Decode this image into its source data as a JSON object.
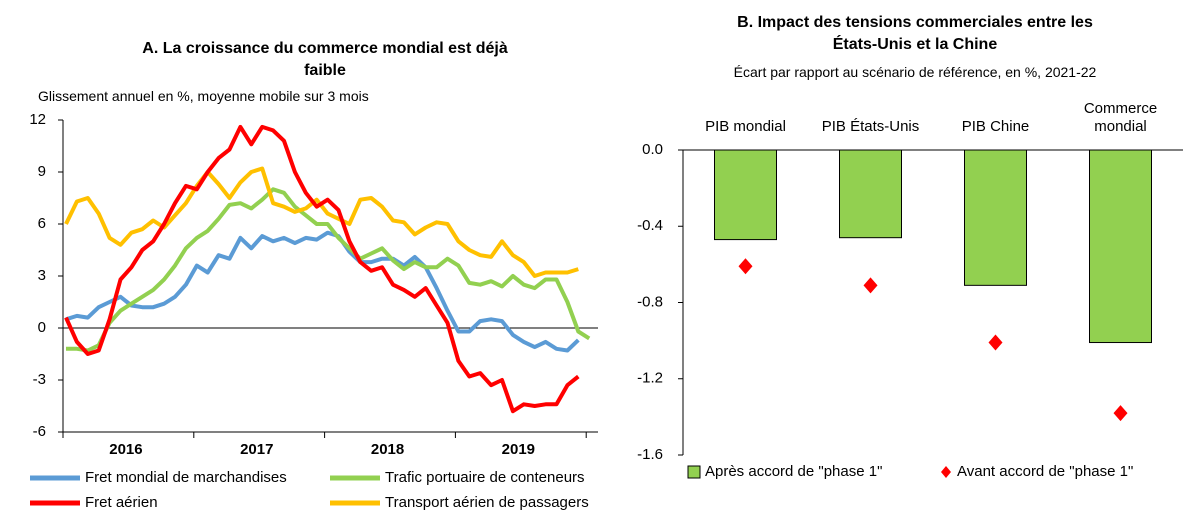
{
  "chart_data": [
    {
      "type": "line",
      "title": "A. La croissance du commerce mondial est déjà faible",
      "subtitle": "Glissement annuel en %, moyenne mobile sur 3 mois",
      "categories": [
        null,
        null,
        null,
        null,
        null,
        null,
        "2016",
        null,
        null,
        null,
        null,
        null,
        null,
        null,
        null,
        null,
        null,
        null,
        "2017",
        null,
        null,
        null,
        null,
        null,
        null,
        null,
        null,
        null,
        null,
        null,
        "2018",
        null,
        null,
        null,
        null,
        null,
        null,
        null,
        null,
        null,
        null,
        null,
        "2019",
        null,
        null,
        null,
        null,
        null,
        null
      ],
      "ylim": [
        -6,
        12
      ],
      "yticks": [
        -6,
        -3,
        0,
        3,
        6,
        9,
        12
      ],
      "series": [
        {
          "name": "Fret mondial de marchandises",
          "color": "#5b9bd5",
          "values": [
            0.5,
            0.7,
            0.6,
            1.2,
            1.5,
            1.8,
            1.3,
            1.2,
            1.2,
            1.4,
            1.8,
            2.5,
            3.6,
            3.2,
            4.2,
            4.0,
            5.2,
            4.6,
            5.3,
            5.0,
            5.2,
            4.9,
            5.2,
            5.1,
            5.5,
            5.3,
            4.4,
            3.8,
            3.8,
            4.0,
            4.0,
            3.6,
            4.1,
            3.5,
            2.3,
            1.0,
            -0.2,
            -0.2,
            0.4,
            0.5,
            0.4,
            -0.4,
            -0.8,
            -1.1,
            -0.8,
            -1.2,
            -1.3,
            -0.7,
            null
          ]
        },
        {
          "name": "Trafic portuaire de conteneurs",
          "color": "#92d050",
          "values": [
            -1.2,
            -1.2,
            -1.3,
            -1.0,
            0.3,
            1.0,
            1.4,
            1.8,
            2.2,
            2.8,
            3.6,
            4.6,
            5.2,
            5.6,
            6.3,
            7.1,
            7.2,
            6.9,
            7.4,
            8.0,
            7.8,
            7.0,
            6.5,
            6.0,
            6.0,
            5.2,
            4.6,
            4.0,
            4.3,
            4.6,
            3.9,
            3.4,
            3.8,
            3.5,
            3.5,
            4.0,
            3.6,
            2.6,
            2.5,
            2.7,
            2.4,
            3.0,
            2.5,
            2.3,
            2.8,
            2.8,
            1.5,
            -0.2,
            -0.6
          ]
        },
        {
          "name": "Fret aérien",
          "color": "#ff0000",
          "values": [
            0.6,
            -0.8,
            -1.5,
            -1.3,
            0.5,
            2.8,
            3.5,
            4.5,
            5.0,
            6.0,
            7.2,
            8.2,
            8.0,
            9.0,
            9.8,
            10.3,
            11.6,
            10.6,
            11.6,
            11.4,
            10.8,
            9.0,
            7.8,
            7.0,
            7.4,
            6.8,
            5.0,
            3.8,
            3.3,
            3.5,
            2.5,
            2.2,
            1.8,
            2.3,
            1.3,
            0.3,
            -1.9,
            -2.8,
            -2.6,
            -3.3,
            -3.0,
            -4.8,
            -4.4,
            -4.5,
            -4.4,
            -4.4,
            -3.3,
            -2.8,
            null
          ]
        },
        {
          "name": "Transport aérien de passagers",
          "color": "#ffc000",
          "values": [
            6.0,
            7.3,
            7.5,
            6.6,
            5.2,
            4.8,
            5.5,
            5.7,
            6.2,
            5.8,
            6.5,
            7.2,
            8.2,
            9.0,
            8.3,
            7.5,
            8.4,
            9.0,
            9.2,
            7.2,
            7.0,
            6.7,
            6.9,
            7.4,
            6.6,
            6.3,
            6.0,
            7.4,
            7.5,
            7.0,
            6.2,
            6.1,
            5.4,
            5.8,
            6.1,
            6.0,
            5.0,
            4.5,
            4.2,
            4.1,
            5.0,
            4.2,
            3.8,
            3.0,
            3.2,
            3.2,
            3.2,
            3.4,
            null
          ]
        }
      ]
    },
    {
      "type": "bar",
      "title": "B. Impact des tensions commerciales entre les États-Unis et la Chine",
      "subtitle": "Écart par rapport au scénario de référence, en %, 2021-22",
      "categories": [
        "PIB mondial",
        "PIB États-Unis",
        "PIB Chine",
        "Commerce mondial"
      ],
      "ylim": [
        -1.6,
        0
      ],
      "yticks": [
        {
          "value": 0,
          "label": "0.0"
        },
        -0.4,
        -0.8,
        -1.2,
        -1.6
      ],
      "series": [
        {
          "name": "Après accord de \"phase 1\"",
          "type": "bar",
          "color": "#92d050",
          "values": [
            -0.47,
            -0.46,
            -0.71,
            -1.01
          ]
        },
        {
          "name": "Avant accord de \"phase 1\"",
          "type": "scatter",
          "color": "#ff0000",
          "values": [
            -0.61,
            -0.71,
            -1.01,
            -1.38
          ]
        }
      ]
    }
  ]
}
